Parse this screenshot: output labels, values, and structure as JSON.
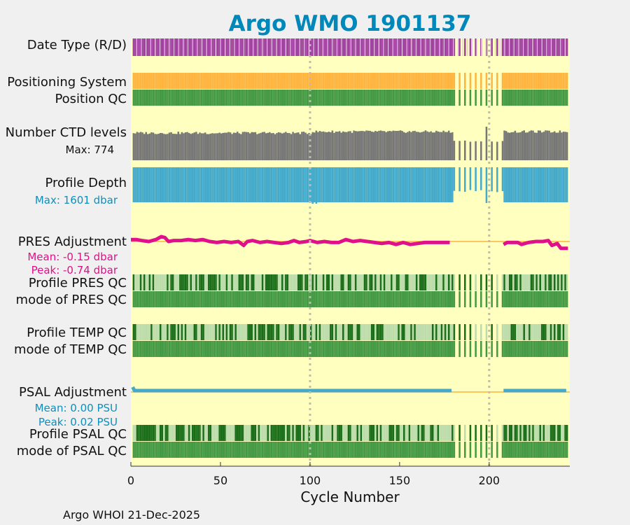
{
  "colors": {
    "background": "#f0f0f0",
    "panel": "#ffffc0",
    "title": "#0088bb",
    "purple": "#a040a0",
    "orange": "#ffb440",
    "green": "#449944",
    "dark_green": "#1a6e1a",
    "light_green": "#bcdcac",
    "gray": "#777777",
    "blue": "#44aacc",
    "pink": "#e0108a",
    "grid": "#bbbbbb"
  },
  "chart_data": {
    "type": "bar",
    "title": "Argo WMO 1901137",
    "xlabel": "Cycle Number",
    "xlim": [
      0,
      245
    ],
    "xticks": [
      0,
      50,
      100,
      150,
      200
    ],
    "gridlines_x": [
      100,
      200
    ],
    "gap_region": [
      179,
      208
    ],
    "rows": [
      {
        "key": "date_type",
        "label": "Date Type (R/D)",
        "values": "D for all cycles"
      },
      {
        "key": "positioning",
        "label": "Positioning System",
        "values": "GPS for all cycles"
      },
      {
        "key": "position_qc",
        "label": "Position QC",
        "values": "1 for all cycles"
      },
      {
        "key": "ctd_levels",
        "label": "Number CTD levels",
        "max_label": "Max: 774",
        "max": 774
      },
      {
        "key": "profile_depth",
        "label": "Profile Depth",
        "max_label": "Max: 1601 dbar",
        "max": 1601
      },
      {
        "key": "pres_adjustment",
        "label": "PRES Adjustment",
        "mean_label": "Mean: -0.15 dbar",
        "peak_label": "Peak: -0.74 dbar",
        "mean": -0.15,
        "peak": -0.74
      },
      {
        "key": "profile_pres_qc",
        "label": "Profile PRES QC"
      },
      {
        "key": "mode_pres_qc",
        "label": "mode of PRES QC"
      },
      {
        "key": "profile_temp_qc",
        "label": "Profile TEMP QC"
      },
      {
        "key": "mode_temp_qc",
        "label": "mode of TEMP QC"
      },
      {
        "key": "psal_adjustment",
        "label": "PSAL Adjustment",
        "mean_label": "Mean: 0.00 PSU",
        "peak_label": "Peak: 0.02 PSU",
        "mean": 0.0,
        "peak": 0.02
      },
      {
        "key": "profile_psal_qc",
        "label": "Profile PSAL QC"
      },
      {
        "key": "mode_psal_qc",
        "label": "mode of PSAL QC"
      }
    ],
    "pres_adjustment_series": [
      [
        0,
        0.1
      ],
      [
        3,
        0.1
      ],
      [
        6,
        0.05
      ],
      [
        10,
        0.0
      ],
      [
        14,
        0.1
      ],
      [
        17,
        0.25
      ],
      [
        19,
        0.2
      ],
      [
        21,
        0.0
      ],
      [
        24,
        0.05
      ],
      [
        28,
        0.05
      ],
      [
        32,
        0.1
      ],
      [
        36,
        0.05
      ],
      [
        40,
        0.1
      ],
      [
        44,
        0.0
      ],
      [
        48,
        -0.05
      ],
      [
        52,
        0.0
      ],
      [
        56,
        -0.05
      ],
      [
        60,
        0.0
      ],
      [
        63,
        -0.2
      ],
      [
        65,
        0.0
      ],
      [
        68,
        0.05
      ],
      [
        72,
        -0.05
      ],
      [
        76,
        0.0
      ],
      [
        80,
        -0.05
      ],
      [
        84,
        -0.1
      ],
      [
        88,
        -0.05
      ],
      [
        91,
        0.05
      ],
      [
        94,
        -0.05
      ],
      [
        98,
        0.0
      ],
      [
        100,
        0.05
      ],
      [
        104,
        -0.05
      ],
      [
        108,
        0.0
      ],
      [
        112,
        -0.05
      ],
      [
        116,
        -0.05
      ],
      [
        120,
        0.1
      ],
      [
        124,
        0.0
      ],
      [
        128,
        0.05
      ],
      [
        132,
        0.0
      ],
      [
        136,
        -0.05
      ],
      [
        140,
        -0.1
      ],
      [
        144,
        -0.05
      ],
      [
        148,
        -0.15
      ],
      [
        152,
        -0.05
      ],
      [
        156,
        -0.15
      ],
      [
        160,
        -0.1
      ],
      [
        164,
        -0.05
      ],
      [
        168,
        -0.05
      ],
      [
        172,
        -0.05
      ],
      [
        176,
        -0.05
      ],
      [
        178,
        -0.05
      ]
    ],
    "pres_adjustment_series_late": [
      [
        208,
        -0.15
      ],
      [
        210,
        -0.05
      ],
      [
        213,
        -0.05
      ],
      [
        216,
        -0.05
      ],
      [
        218,
        -0.15
      ],
      [
        222,
        -0.05
      ],
      [
        226,
        0.0
      ],
      [
        230,
        0.0
      ],
      [
        233,
        0.05
      ],
      [
        235,
        -0.2
      ],
      [
        238,
        -0.1
      ],
      [
        240,
        -0.35
      ],
      [
        243,
        -0.35
      ],
      [
        244,
        -0.35
      ]
    ]
  },
  "footer": "Argo WHOI 21-Dec-2025"
}
